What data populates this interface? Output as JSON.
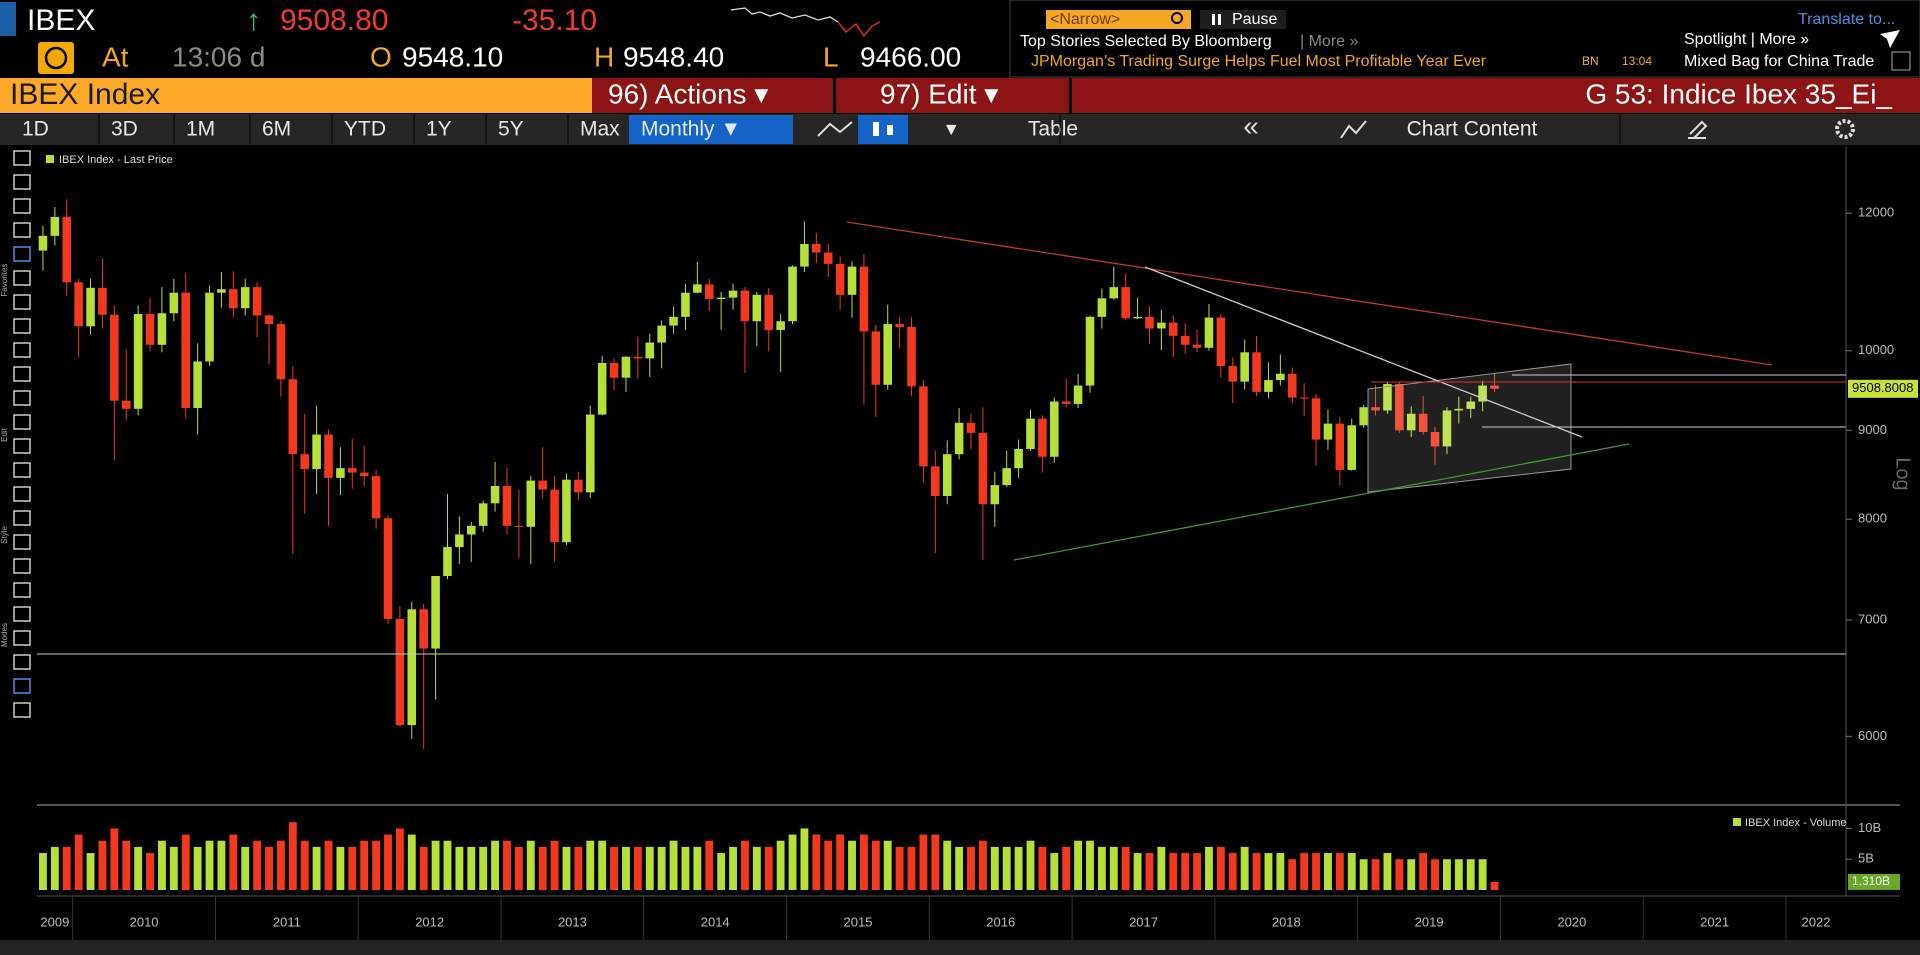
{
  "header": {
    "ticker": "IBEX",
    "arrow": "↑",
    "last": "9508.80",
    "change": "-35.10",
    "at": "At",
    "time": "13:06 d",
    "open_label": "O",
    "open": "9548.10",
    "high_label": "H",
    "high": "9548.40",
    "low_label": "L",
    "low": "9466.00"
  },
  "news": {
    "filter": "<Narrow>",
    "pause": "Pause",
    "heading": "Top Stories Selected By Bloomberg",
    "more": "| More »",
    "story": "JPMorgan’s Trading Surge Helps Fuel Most Profitable Year Ever",
    "source": "BN",
    "story_time": "13:04",
    "translate": "Translate to...",
    "spotlight": "Spotlight | More »",
    "spotlight_story": "Mixed Bag for China Trade"
  },
  "menu": {
    "security": "IBEX Index",
    "actions": "96) Actions ▾",
    "edit": "97) Edit ▾",
    "page": "G 53: Indice Ibex 35_Ei_"
  },
  "toolbar": {
    "ranges": [
      "1D",
      "3D",
      "1M",
      "6M",
      "YTD",
      "1Y",
      "5Y",
      "Max"
    ],
    "period": "Monthly ▼",
    "dropdown": "▾",
    "table": "Table",
    "collapse": "«",
    "content": "Chart Content",
    "side_labels": [
      "Favorites",
      "Edit",
      "Style",
      "Modes"
    ]
  },
  "chart_data": {
    "type": "candlestick",
    "log": true,
    "y_label": "Log",
    "ylim": [
      5500,
      13100
    ],
    "yticks": [
      6000,
      7000,
      8000,
      9000,
      10000,
      12000
    ],
    "xlim": [
      2009.75,
      2022.42
    ],
    "xticks": [
      2009,
      2010,
      2011,
      2012,
      2013,
      2014,
      2015,
      2016,
      2017,
      2018,
      2019,
      2020,
      2021,
      2022
    ],
    "last_value": 9508.8008,
    "series": [
      {
        "name": "IBEX Index - Last Price",
        "color": "#b5e03a",
        "up_color": "#b5e03a",
        "down_color": "#f2391f",
        "open": [
          11420,
          11645,
          11940,
          10950,
          10330,
          10870,
          10490,
          9360,
          9260,
          10500,
          10080,
          10510,
          10800,
          9270,
          9860,
          10800,
          10850,
          10580,
          10880,
          10480,
          10360,
          9630,
          8720,
          8550,
          8950,
          8450,
          8560,
          8510,
          8470,
          8010,
          7010,
          6090,
          7100,
          6740,
          7420,
          7710,
          7840,
          7930,
          8170,
          8360,
          7930,
          7920,
          8420,
          8320,
          7760,
          8430,
          8290,
          9190,
          9840,
          9650,
          9920,
          9900,
          10110,
          10340,
          10460,
          10800,
          10920,
          10710,
          10730,
          10830,
          10400,
          10770,
          10280,
          10400,
          11180,
          11520,
          11390,
          11220,
          10770,
          11180,
          10260,
          9560,
          10360,
          10320,
          9540,
          8580,
          8250,
          8720,
          9090,
          8970,
          8160,
          8370,
          8560,
          8780,
          9140,
          8690,
          9350,
          9320,
          9550,
          10460,
          10720,
          10880,
          10440,
          10460,
          10300,
          10380,
          10200,
          10080,
          10040,
          10450,
          9800,
          9600,
          9980,
          9470,
          9620,
          9700,
          9400,
          9390,
          8890,
          9080,
          8540,
          9060,
          9280,
          9240,
          9570,
          9000,
          9200,
          8980,
          8810,
          9240,
          9260,
          9350,
          9550
        ],
        "high": [
          11800,
          12100,
          12220,
          11000,
          11000,
          11300,
          10620,
          10020,
          10620,
          10720,
          10880,
          11000,
          11080,
          10100,
          10900,
          11100,
          11110,
          11000,
          10950,
          10500,
          10400,
          9800,
          9200,
          9300,
          9010,
          8800,
          8900,
          8820,
          8540,
          8040,
          7130,
          7170,
          7150,
          7420,
          8270,
          8030,
          7970,
          8200,
          8630,
          8560,
          8320,
          8470,
          8800,
          8470,
          8500,
          8520,
          9300,
          9930,
          9900,
          9930,
          10190,
          10230,
          10410,
          10600,
          10930,
          11250,
          11000,
          10810,
          10930,
          10880,
          10810,
          10870,
          10500,
          11200,
          11870,
          11690,
          11520,
          11330,
          11260,
          11370,
          10350,
          10630,
          10460,
          10460,
          9620,
          8760,
          8880,
          9270,
          9200,
          9280,
          8520,
          8760,
          8890,
          9250,
          9180,
          9400,
          9640,
          9700,
          10480,
          10860,
          11180,
          11080,
          10730,
          10600,
          10560,
          10480,
          10370,
          10290,
          10640,
          10500,
          9910,
          10150,
          10200,
          9850,
          9950,
          9780,
          9580,
          9450,
          9250,
          9160,
          9140,
          9310,
          9560,
          9600,
          9590,
          9290,
          9420,
          9040,
          9280,
          9410,
          9410,
          9610,
          9710
        ],
        "low": [
          11120,
          11500,
          10750,
          9920,
          10220,
          10300,
          8650,
          9120,
          9180,
          10000,
          9980,
          10400,
          9140,
          8950,
          9800,
          10590,
          10450,
          10480,
          10180,
          9820,
          9410,
          7640,
          8060,
          8270,
          7930,
          8260,
          8330,
          8360,
          7900,
          6960,
          6080,
          5980,
          5900,
          6300,
          7390,
          7540,
          7560,
          7870,
          8080,
          7840,
          7600,
          7540,
          8220,
          7560,
          7730,
          8200,
          8230,
          9180,
          9490,
          9470,
          9640,
          9660,
          9770,
          10230,
          10280,
          10790,
          10540,
          10280,
          10560,
          9710,
          10060,
          9990,
          9720,
          10360,
          11100,
          11230,
          11030,
          10560,
          10450,
          9310,
          9160,
          9500,
          10040,
          9420,
          8400,
          7650,
          8160,
          8660,
          8780,
          7580,
          7920,
          8350,
          8450,
          8760,
          8510,
          8620,
          9280,
          9270,
          9460,
          10300,
          10700,
          10420,
          10430,
          10090,
          10010,
          9920,
          9960,
          9980,
          10000,
          9650,
          9330,
          9500,
          9420,
          9390,
          9550,
          9330,
          9170,
          8590,
          8770,
          8370,
          8530,
          9030,
          9180,
          9200,
          8970,
          8920,
          8950,
          8600,
          8720,
          9080,
          9150,
          9230,
          9470
        ],
        "close": [
          11645,
          11940,
          10950,
          10330,
          10870,
          10490,
          9360,
          9260,
          10500,
          10080,
          10510,
          10800,
          9270,
          9860,
          10800,
          10850,
          10580,
          10880,
          10480,
          10360,
          9630,
          8720,
          8550,
          8950,
          8450,
          8560,
          8510,
          8470,
          8010,
          7010,
          6090,
          7100,
          6740,
          7420,
          7710,
          7840,
          7930,
          8170,
          8360,
          7930,
          7920,
          8420,
          8320,
          7760,
          8430,
          8290,
          9190,
          9840,
          9650,
          9920,
          9900,
          10110,
          10340,
          10460,
          10800,
          10920,
          10710,
          10730,
          10830,
          10400,
          10770,
          10280,
          10400,
          11180,
          11520,
          11390,
          11220,
          10770,
          11180,
          10260,
          9560,
          10360,
          10320,
          9540,
          8580,
          8250,
          8720,
          9090,
          8970,
          8160,
          8370,
          8560,
          8780,
          9140,
          8690,
          9350,
          9320,
          9550,
          10460,
          10720,
          10880,
          10440,
          10460,
          10300,
          10380,
          10200,
          10080,
          10040,
          10450,
          9800,
          9600,
          9980,
          9470,
          9620,
          9700,
          9400,
          9390,
          8890,
          9080,
          8540,
          9060,
          9280,
          9240,
          9570,
          9000,
          9200,
          8980,
          8810,
          9240,
          9260,
          9350,
          9550,
          9508.8
        ]
      }
    ],
    "volume": {
      "name": "IBEX Index - Volume",
      "ylim": [
        0,
        12.5
      ],
      "yticks": [
        {
          "value": 5,
          "label": "5B"
        },
        {
          "value": 10,
          "label": "10B"
        }
      ],
      "last": {
        "value": 1.31,
        "label": "1.310B"
      },
      "values": [
        6,
        7,
        7,
        9,
        6,
        8,
        10,
        8,
        7,
        6,
        8,
        7,
        9,
        7,
        8,
        8,
        9,
        7,
        8,
        7,
        8,
        11,
        8,
        7,
        8,
        7,
        7,
        8,
        8,
        9,
        10,
        9,
        7,
        8,
        8,
        7,
        7,
        7,
        8,
        8,
        7,
        8,
        7,
        8,
        7,
        7,
        8,
        8,
        7,
        7,
        7,
        7,
        7,
        8,
        7,
        7,
        8,
        6,
        7,
        8,
        7,
        7,
        8,
        9,
        10,
        9,
        8,
        9,
        8,
        9,
        8,
        8,
        7,
        7,
        9,
        9,
        8,
        7,
        7,
        8,
        7,
        7,
        7,
        8,
        7,
        6,
        7,
        8,
        8,
        7,
        7,
        7,
        6,
        6,
        7,
        6,
        6,
        6,
        7,
        7,
        6,
        7,
        6,
        6,
        6,
        5,
        6,
        6,
        6,
        6,
        6,
        5,
        5,
        6,
        5,
        5,
        6,
        5,
        5,
        5,
        5,
        5,
        1.31
      ]
    }
  }
}
